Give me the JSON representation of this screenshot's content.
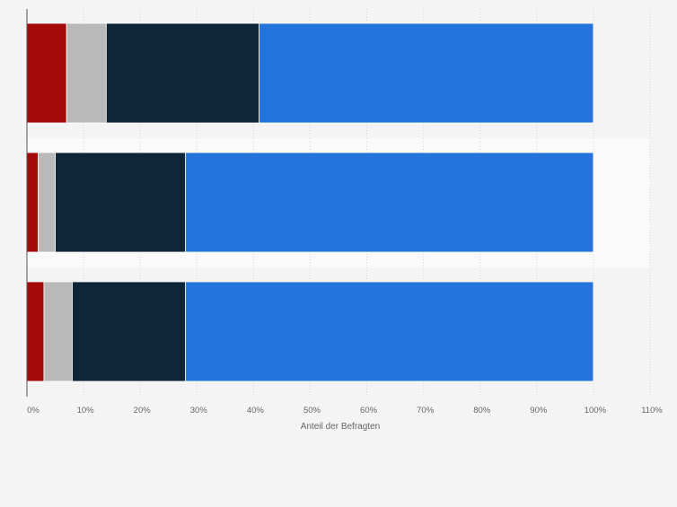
{
  "chart_data": {
    "type": "bar",
    "orientation": "horizontal",
    "stacked": true,
    "categories": [
      "",
      "",
      ""
    ],
    "xlabel": "Anteil der Befragten",
    "ylabel": "",
    "xlim": [
      0,
      110
    ],
    "x_ticks": [
      0,
      10,
      20,
      30,
      40,
      50,
      60,
      70,
      80,
      90,
      100,
      110
    ],
    "tick_suffix": "%",
    "grid": true,
    "legend": "none",
    "series": [
      {
        "color": "#a50a0a",
        "values": [
          7,
          2,
          3
        ]
      },
      {
        "color": "#b9b9b9",
        "values": [
          7,
          3,
          5
        ]
      },
      {
        "color": "#0f2639",
        "values": [
          27,
          23,
          20
        ]
      },
      {
        "color": "#2574db",
        "values": [
          59,
          72,
          72
        ]
      }
    ]
  }
}
